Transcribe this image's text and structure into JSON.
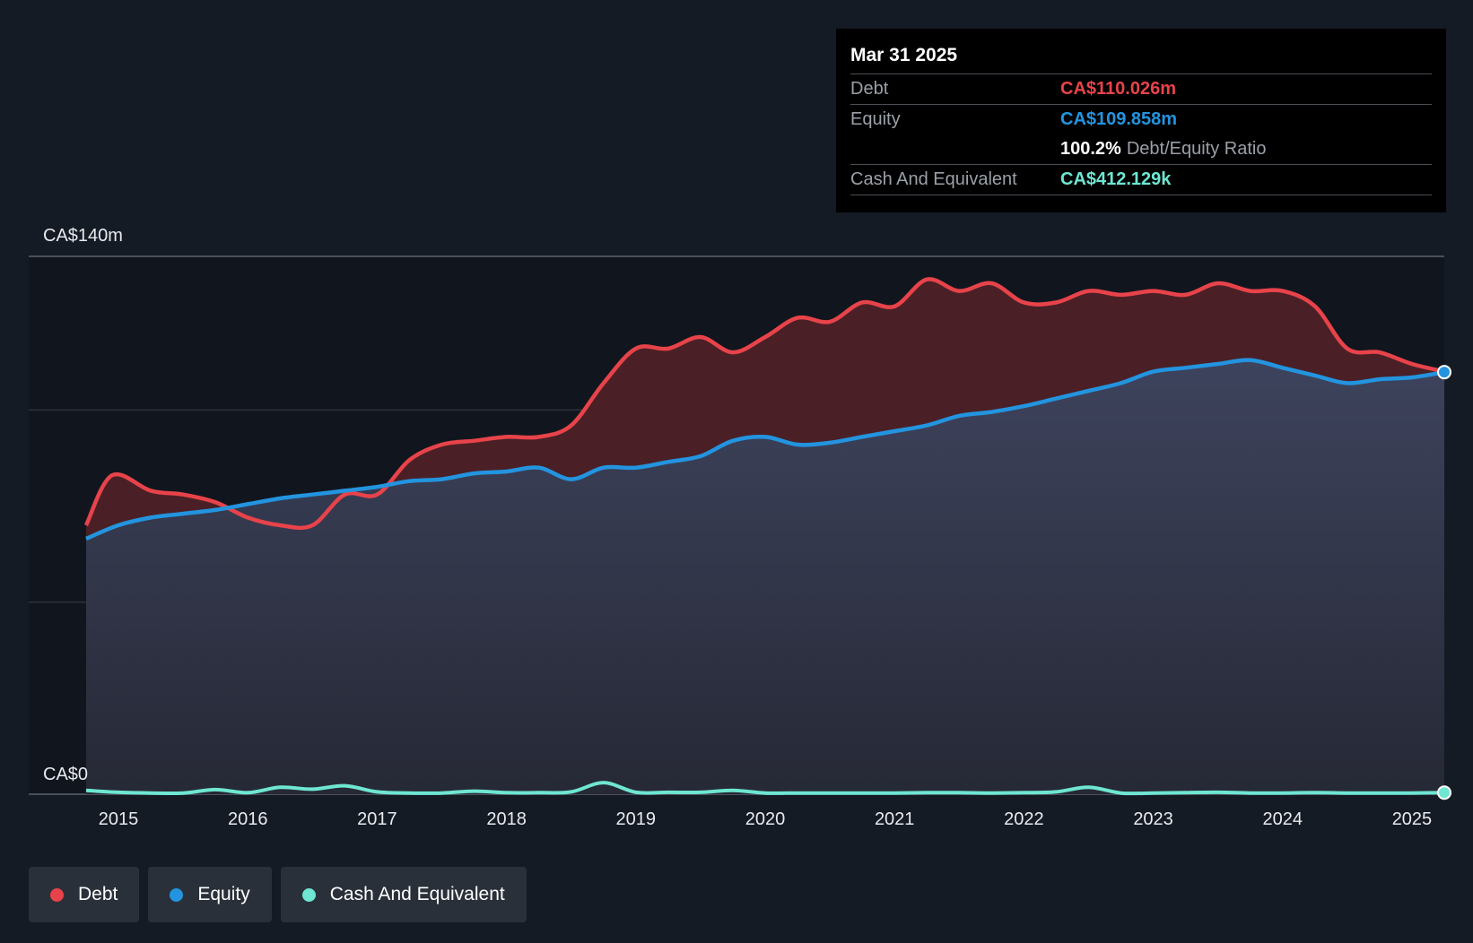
{
  "tooltip": {
    "date": "Mar 31 2025",
    "debt_label": "Debt",
    "debt_value": "CA$110.026m",
    "equity_label": "Equity",
    "equity_value": "CA$109.858m",
    "ratio_value": "100.2%",
    "ratio_label": "Debt/Equity Ratio",
    "cash_label": "Cash And Equivalent",
    "cash_value": "CA$412.129k"
  },
  "legend": {
    "debt": "Debt",
    "equity": "Equity",
    "cash": "Cash And Equivalent"
  },
  "colors": {
    "debt": "#e8434a",
    "equity": "#2394df",
    "cash": "#6ee6d2",
    "background": "#151b24"
  },
  "chart_data": {
    "type": "area",
    "title": "",
    "y_top_label": "CA$140m",
    "y_bottom_label": "CA$0",
    "ylim": [
      0,
      140
    ],
    "xlim": [
      2014.75,
      2025.25
    ],
    "x_ticks": [
      "2015",
      "2016",
      "2017",
      "2018",
      "2019",
      "2020",
      "2021",
      "2022",
      "2023",
      "2024",
      "2025"
    ],
    "series": [
      {
        "name": "Debt",
        "x": [
          2014.75,
          2014.95,
          2015.25,
          2015.5,
          2015.75,
          2016.0,
          2016.25,
          2016.5,
          2016.75,
          2017.0,
          2017.25,
          2017.5,
          2017.75,
          2018.0,
          2018.25,
          2018.5,
          2018.75,
          2019.0,
          2019.25,
          2019.5,
          2019.75,
          2020.0,
          2020.25,
          2020.5,
          2020.75,
          2021.0,
          2021.25,
          2021.5,
          2021.75,
          2022.0,
          2022.25,
          2022.5,
          2022.75,
          2023.0,
          2023.25,
          2023.5,
          2023.75,
          2024.0,
          2024.25,
          2024.5,
          2024.75,
          2025.0,
          2025.25
        ],
        "values": [
          70,
          83,
          79,
          78,
          76,
          72,
          70,
          70,
          78,
          78,
          87,
          91,
          92,
          93,
          93,
          96,
          107,
          116,
          116,
          119,
          115,
          119,
          124,
          123,
          128,
          127,
          134,
          131,
          133,
          128,
          128,
          131,
          130,
          131,
          130,
          133,
          131,
          131,
          127,
          116,
          115,
          112,
          110.026
        ]
      },
      {
        "name": "Equity",
        "x": [
          2014.75,
          2015.0,
          2015.25,
          2015.5,
          2015.75,
          2016.0,
          2016.25,
          2016.5,
          2016.75,
          2017.0,
          2017.25,
          2017.5,
          2017.75,
          2018.0,
          2018.25,
          2018.5,
          2018.75,
          2019.0,
          2019.25,
          2019.5,
          2019.75,
          2020.0,
          2020.25,
          2020.5,
          2020.75,
          2021.0,
          2021.25,
          2021.5,
          2021.75,
          2022.0,
          2022.25,
          2022.5,
          2022.75,
          2023.0,
          2023.25,
          2023.5,
          2023.75,
          2024.0,
          2024.25,
          2024.5,
          2024.75,
          2025.0,
          2025.25
        ],
        "values": [
          66.5,
          70,
          72,
          73,
          74,
          75.5,
          77,
          78,
          79,
          80,
          81.5,
          82,
          83.5,
          84,
          85,
          82,
          85,
          85,
          86.5,
          88,
          92,
          93,
          91,
          91.5,
          93,
          94.5,
          96,
          98.5,
          99.5,
          101,
          103,
          105,
          107,
          110,
          111,
          112,
          113,
          111,
          109,
          107,
          108,
          108.5,
          109.858
        ]
      },
      {
        "name": "Cash And Equivalent",
        "x": [
          2014.75,
          2015.0,
          2015.25,
          2015.5,
          2015.75,
          2016.0,
          2016.25,
          2016.5,
          2016.75,
          2017.0,
          2017.25,
          2017.5,
          2017.75,
          2018.0,
          2018.25,
          2018.5,
          2018.75,
          2019.0,
          2019.25,
          2019.5,
          2019.75,
          2020.0,
          2020.25,
          2020.5,
          2020.75,
          2021.0,
          2021.25,
          2021.5,
          2021.75,
          2022.0,
          2022.25,
          2022.5,
          2022.75,
          2023.0,
          2023.25,
          2023.5,
          2023.75,
          2024.0,
          2024.25,
          2024.5,
          2024.75,
          2025.0,
          2025.25
        ],
        "values": [
          1.0,
          0.5,
          0.3,
          0.3,
          1.2,
          0.4,
          1.8,
          1.3,
          2.2,
          0.6,
          0.3,
          0.3,
          0.8,
          0.4,
          0.4,
          0.6,
          3.0,
          0.5,
          0.5,
          0.5,
          1.0,
          0.3,
          0.3,
          0.3,
          0.3,
          0.3,
          0.4,
          0.4,
          0.3,
          0.4,
          0.6,
          1.8,
          0.3,
          0.3,
          0.4,
          0.5,
          0.3,
          0.3,
          0.4,
          0.3,
          0.3,
          0.3,
          0.412
        ]
      }
    ],
    "grid": true,
    "legend_position": "bottom-left"
  }
}
